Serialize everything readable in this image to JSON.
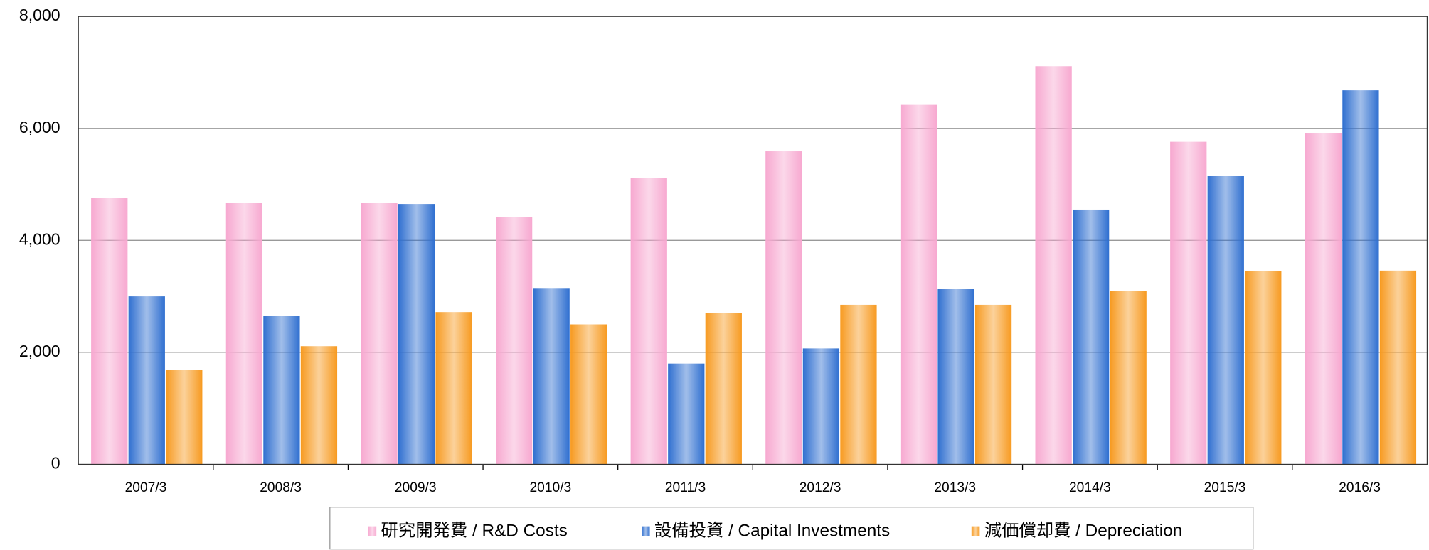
{
  "chart_data": {
    "type": "bar",
    "categories": [
      "2007/3",
      "2008/3",
      "2009/3",
      "2010/3",
      "2011/3",
      "2012/3",
      "2013/3",
      "2014/3",
      "2015/3",
      "2016/3"
    ],
    "series": [
      {
        "name": "研究開発費 / R&D Costs",
        "color": "#f7a8d0",
        "values": [
          4760,
          4670,
          4670,
          4420,
          5110,
          5590,
          6420,
          7110,
          5760,
          5920
        ]
      },
      {
        "name": "設備投資 / Capital Investments",
        "color": "#2f6fd0",
        "values": [
          3000,
          2650,
          4650,
          3150,
          1800,
          2070,
          3140,
          4550,
          5150,
          6680
        ]
      },
      {
        "name": "減価償却費 / Depreciation",
        "color": "#f79a20",
        "values": [
          1690,
          2110,
          2720,
          2500,
          2700,
          2850,
          2850,
          3100,
          3450,
          3460
        ]
      }
    ],
    "ylim": [
      0,
      8000
    ],
    "yticks": [
      0,
      {
        "value": 2000,
        "label": "2,000"
      },
      {
        "value": 4000,
        "label": "4,000"
      },
      {
        "value": 6000,
        "label": "6,000"
      },
      {
        "value": 8000,
        "label": "8,000"
      }
    ],
    "grid": true
  }
}
